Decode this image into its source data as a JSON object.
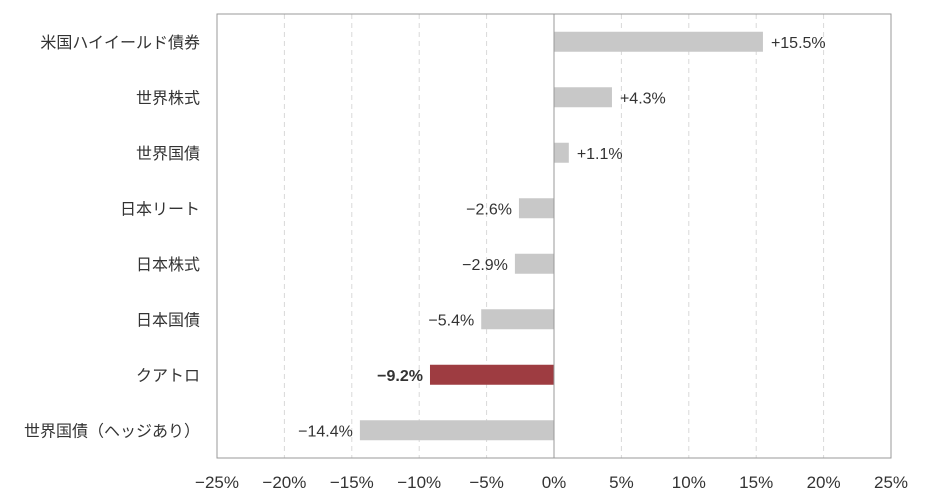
{
  "chart_data": {
    "type": "bar",
    "orientation": "horizontal",
    "title": "",
    "xlabel": "",
    "ylabel": "",
    "xlim": [
      -25,
      25
    ],
    "x_ticks": [
      -25,
      -20,
      -15,
      -10,
      -5,
      0,
      5,
      10,
      15,
      20,
      25
    ],
    "x_tick_labels": [
      "−25%",
      "−20%",
      "−15%",
      "−10%",
      "−5%",
      "0%",
      "5%",
      "10%",
      "15%",
      "20%",
      "25%"
    ],
    "grid": "vertical dashed",
    "categories": [
      "米国ハイイールド債券",
      "世界株式",
      "世界国債",
      "日本リート",
      "日本株式",
      "日本国債",
      "クアトロ",
      "世界国債（ヘッジあり）"
    ],
    "values": [
      15.5,
      4.3,
      1.1,
      -2.6,
      -2.9,
      -5.4,
      -9.2,
      -14.4
    ],
    "value_labels": [
      "+15.5%",
      "+4.3%",
      "+1.1%",
      "−2.6%",
      "−2.9%",
      "−5.4%",
      "−9.2%",
      "−14.4%"
    ],
    "highlight_index": 6
  },
  "colors": {
    "bar": "#c8c8c8",
    "highlight": "#9e3c41",
    "axis": "#999999",
    "grid": "#d9d9d9",
    "text": "#333333"
  }
}
